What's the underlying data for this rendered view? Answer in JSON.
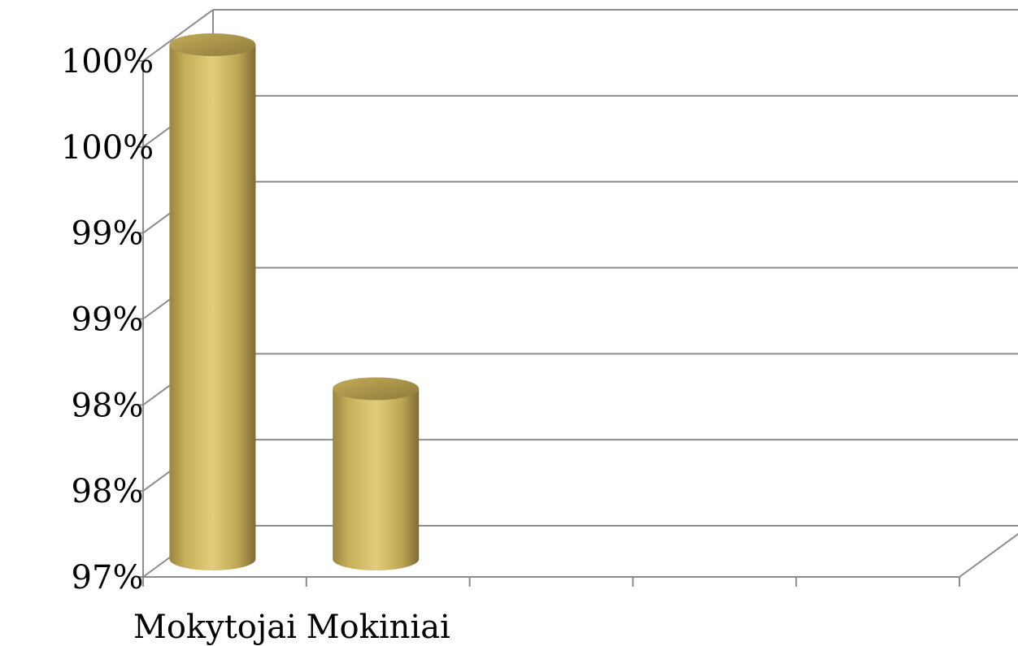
{
  "chart_data": {
    "type": "bar",
    "style": "3d-cylinder",
    "categories": [
      "Mokytojai",
      "Mokiniai",
      "",
      "",
      ""
    ],
    "values": [
      100,
      98,
      null,
      null,
      null
    ],
    "y_tick_labels": [
      "97%",
      "98%",
      "98%",
      "99%",
      "99%",
      "100%",
      "100%"
    ],
    "ylim": [
      97,
      100
    ],
    "grid": true,
    "legend": "none",
    "bar_color": "#d9c26c",
    "grid_color": "#8c8c8c"
  }
}
